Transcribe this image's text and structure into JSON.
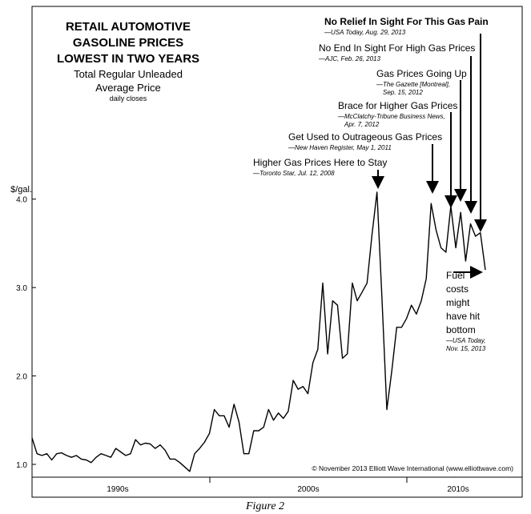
{
  "chart_data": {
    "type": "line",
    "title": [
      "RETAIL AUTOMOTIVE",
      "GASOLINE PRICES",
      "LOWEST IN TWO YEARS"
    ],
    "subtitle": [
      "Total Regular Unleaded",
      "Average Price"
    ],
    "note": "daily closes",
    "ylabel": "$/gal.",
    "color": "#000000",
    "ylim": [
      0.855,
      6.18
    ],
    "yticks": [
      {
        "value": 1,
        "label": "1.0"
      },
      {
        "value": 2,
        "label": "2.0"
      },
      {
        "value": 3,
        "label": "3.0"
      },
      {
        "value": 4,
        "label": "4.0"
      }
    ],
    "x_labels": [
      "1990s",
      "2000s",
      "2010s"
    ],
    "values": [
      1.3,
      1.12,
      1.1,
      1.12,
      1.05,
      1.12,
      1.13,
      1.1,
      1.08,
      1.1,
      1.06,
      1.05,
      1.02,
      1.08,
      1.12,
      1.1,
      1.08,
      1.18,
      1.14,
      1.1,
      1.12,
      1.28,
      1.22,
      1.24,
      1.23,
      1.18,
      1.22,
      1.16,
      1.06,
      1.06,
      1.02,
      0.97,
      0.92,
      1.12,
      1.18,
      1.25,
      1.35,
      1.62,
      1.55,
      1.55,
      1.42,
      1.68,
      1.48,
      1.12,
      1.12,
      1.38,
      1.38,
      1.42,
      1.62,
      1.5,
      1.58,
      1.52,
      1.6,
      1.95,
      1.85,
      1.88,
      1.8,
      2.15,
      2.3,
      3.05,
      2.25,
      2.85,
      2.8,
      2.2,
      2.25,
      3.05,
      2.85,
      2.95,
      3.05,
      3.6,
      4.08,
      2.9,
      1.62,
      2.05,
      2.55,
      2.55,
      2.65,
      2.8,
      2.7,
      2.85,
      3.1,
      3.95,
      3.65,
      3.45,
      3.4,
      3.92,
      3.45,
      3.85,
      3.3,
      3.72,
      3.58,
      3.62,
      3.2
    ],
    "annotations": [
      {
        "headline": "No Relief In Sight For This Gas Pain",
        "citation": [
          "—USA Today, Aug. 29, 2013"
        ]
      },
      {
        "headline": "No End In Sight For High Gas Prices",
        "citation": [
          "—AJC, Feb. 26, 2013"
        ]
      },
      {
        "headline": "Gas Prices Going Up",
        "citation": [
          "—The Gazette [Montreal],",
          "Sep. 15, 2012"
        ]
      },
      {
        "headline": "Brace for Higher Gas Prices",
        "citation": [
          "—McClatchy-Tribune Business News,",
          "Apr. 7, 2012"
        ]
      },
      {
        "headline": "Get Used to Outrageous Gas Prices",
        "citation": [
          "—New Haven Register, May 1, 2011"
        ]
      },
      {
        "headline": "Higher Gas Prices Here to Stay",
        "citation": [
          "—Toronto Star, Jul. 12, 2008"
        ]
      },
      {
        "headline": [
          "Fuel",
          "costs",
          "might",
          "have hit",
          "bottom"
        ],
        "citation": [
          "—USA Today,",
          "Nov. 15, 2013"
        ]
      }
    ],
    "credit": "© November 2013 Elliott Wave International (www.elliottwave.com)"
  },
  "caption": "Figure 2"
}
